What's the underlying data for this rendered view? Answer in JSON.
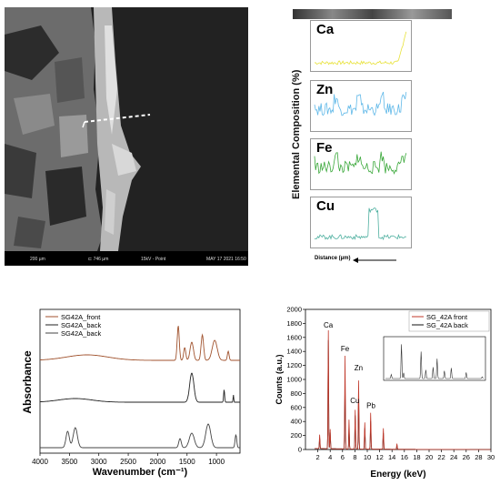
{
  "sem": {
    "scale_bar_label": "200 µm",
    "measure_label": "⊏ 746 µm",
    "mode_label": "15kV - Point",
    "timestamp": "MAY 17 2021 16:50"
  },
  "profiles": {
    "ylabel": "Elemental Composition (%)",
    "xlabel": "Distance (µm)",
    "panels": [
      {
        "element": "Ca",
        "color": "#e8e23a"
      },
      {
        "element": "Zn",
        "color": "#5fb8e8"
      },
      {
        "element": "Fe",
        "color": "#3aa83a"
      },
      {
        "element": "Cu",
        "color": "#4fb0a0"
      }
    ]
  },
  "chart_data": [
    {
      "type": "line",
      "xlabel": "Wavenumber (cm⁻¹)",
      "ylabel": "Absorbance",
      "x_ticks": [
        4000,
        3500,
        3000,
        2500,
        2000,
        1500,
        1000
      ],
      "xlim": [
        4000,
        600
      ],
      "x_reversed": true,
      "series": [
        {
          "name": "SG42A_front",
          "color": "#a0522d"
        },
        {
          "name": "SG42A_back",
          "color": "#222222"
        },
        {
          "name": "SG42A_back",
          "color": "#444444"
        }
      ]
    },
    {
      "type": "line",
      "xlabel": "Energy (keV)",
      "ylabel": "Counts (a.u.)",
      "xlim": [
        0,
        30
      ],
      "ylim": [
        0,
        2000
      ],
      "x_ticks": [
        2,
        4,
        6,
        8,
        10,
        12,
        14,
        16,
        18,
        20,
        22,
        24,
        26,
        28,
        30
      ],
      "y_ticks": [
        0,
        200,
        400,
        600,
        800,
        1000,
        1200,
        1400,
        1600,
        1800,
        2000
      ],
      "series": [
        {
          "name": "SG_42A front",
          "color": "#c0392b"
        },
        {
          "name": "SG_42A back",
          "color": "#111111"
        }
      ],
      "peak_labels": [
        {
          "text": "Ca",
          "x": 3.7,
          "y": 1690
        },
        {
          "text": "Fe",
          "x": 6.4,
          "y": 1350
        },
        {
          "text": "Zn",
          "x": 8.6,
          "y": 1080
        },
        {
          "text": "Cu",
          "x": 8.0,
          "y": 610
        },
        {
          "text": "Pb",
          "x": 10.6,
          "y": 540
        }
      ],
      "peaks_front": [
        [
          2.3,
          200
        ],
        [
          3.7,
          1690
        ],
        [
          4.0,
          280
        ],
        [
          6.4,
          1330
        ],
        [
          7.05,
          420
        ],
        [
          8.05,
          560
        ],
        [
          8.6,
          980
        ],
        [
          9.6,
          380
        ],
        [
          10.55,
          520
        ],
        [
          12.6,
          300
        ],
        [
          14.8,
          80
        ]
      ],
      "peaks_back": [
        [
          2.3,
          150
        ],
        [
          3.7,
          1550
        ],
        [
          4.0,
          230
        ],
        [
          6.4,
          900
        ],
        [
          7.05,
          300
        ],
        [
          8.05,
          480
        ],
        [
          8.6,
          760
        ],
        [
          9.6,
          300
        ],
        [
          10.55,
          400
        ],
        [
          12.6,
          230
        ],
        [
          14.8,
          60
        ]
      ]
    }
  ]
}
